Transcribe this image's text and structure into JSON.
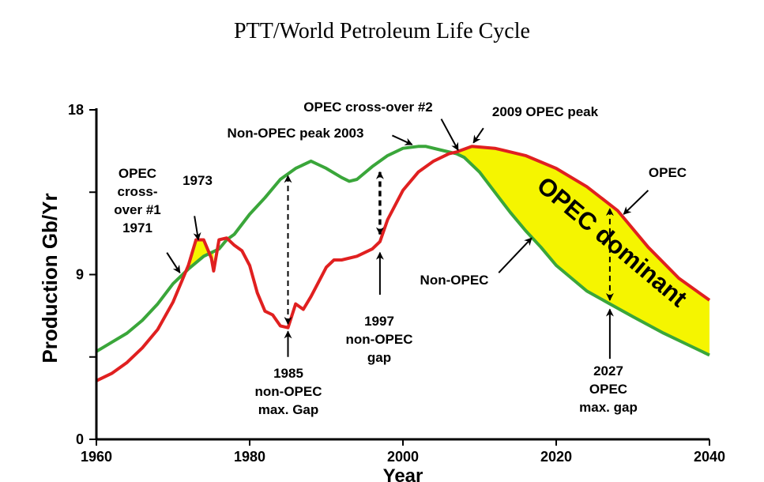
{
  "chart_data": {
    "type": "line",
    "title": "PTT/World Petroleum Life Cycle",
    "xlabel": "Year",
    "ylabel": "Production Gb/Yr",
    "xlim": [
      1960,
      2040
    ],
    "ylim": [
      0,
      18
    ],
    "x_ticks": [
      "1960",
      "1980",
      "2000",
      "2020",
      "2040"
    ],
    "y_ticks": [
      "0",
      "9",
      "18"
    ],
    "y_minor_ticks": [
      4.5,
      13.5
    ],
    "series": [
      {
        "name": "OPEC",
        "color": "#e02020",
        "points": [
          [
            1960,
            3.2
          ],
          [
            1962,
            3.6
          ],
          [
            1964,
            4.2
          ],
          [
            1966,
            5.0
          ],
          [
            1968,
            6.0
          ],
          [
            1970,
            7.5
          ],
          [
            1971,
            8.5
          ],
          [
            1972,
            9.5
          ],
          [
            1973,
            10.9
          ],
          [
            1974,
            10.9
          ],
          [
            1975,
            9.9
          ],
          [
            1975.3,
            9.2
          ],
          [
            1976,
            10.9
          ],
          [
            1977,
            11.0
          ],
          [
            1978,
            10.6
          ],
          [
            1979,
            10.3
          ],
          [
            1980,
            9.5
          ],
          [
            1981,
            8.0
          ],
          [
            1982,
            7.0
          ],
          [
            1983,
            6.8
          ],
          [
            1984,
            6.2
          ],
          [
            1985,
            6.1
          ],
          [
            1986,
            7.4
          ],
          [
            1987,
            7.1
          ],
          [
            1988,
            7.8
          ],
          [
            1989,
            8.6
          ],
          [
            1990,
            9.4
          ],
          [
            1991,
            9.8
          ],
          [
            1992,
            9.8
          ],
          [
            1994,
            10.0
          ],
          [
            1996,
            10.4
          ],
          [
            1997,
            10.8
          ],
          [
            1998,
            12.0
          ],
          [
            2000,
            13.6
          ],
          [
            2002,
            14.6
          ],
          [
            2004,
            15.2
          ],
          [
            2006,
            15.6
          ],
          [
            2007,
            15.7
          ],
          [
            2009,
            16.0
          ],
          [
            2012,
            15.9
          ],
          [
            2016,
            15.5
          ],
          [
            2020,
            14.8
          ],
          [
            2024,
            13.8
          ],
          [
            2028,
            12.5
          ],
          [
            2032,
            10.5
          ],
          [
            2036,
            8.8
          ],
          [
            2040,
            7.6
          ]
        ]
      },
      {
        "name": "Non-OPEC",
        "color": "#3aa63a",
        "points": [
          [
            1960,
            4.8
          ],
          [
            1962,
            5.3
          ],
          [
            1964,
            5.8
          ],
          [
            1966,
            6.5
          ],
          [
            1968,
            7.4
          ],
          [
            1970,
            8.5
          ],
          [
            1972,
            9.3
          ],
          [
            1974,
            10.0
          ],
          [
            1976,
            10.4
          ],
          [
            1977,
            10.9
          ],
          [
            1978,
            11.2
          ],
          [
            1980,
            12.3
          ],
          [
            1982,
            13.2
          ],
          [
            1984,
            14.2
          ],
          [
            1986,
            14.8
          ],
          [
            1988,
            15.2
          ],
          [
            1989,
            15.0
          ],
          [
            1990,
            14.8
          ],
          [
            1992,
            14.3
          ],
          [
            1993,
            14.1
          ],
          [
            1994,
            14.2
          ],
          [
            1996,
            14.9
          ],
          [
            1998,
            15.5
          ],
          [
            2000,
            15.9
          ],
          [
            2002,
            16.0
          ],
          [
            2003,
            16.0
          ],
          [
            2005,
            15.8
          ],
          [
            2007,
            15.6
          ],
          [
            2008,
            15.4
          ],
          [
            2010,
            14.6
          ],
          [
            2012,
            13.5
          ],
          [
            2014,
            12.4
          ],
          [
            2016,
            11.4
          ],
          [
            2018,
            10.5
          ],
          [
            2020,
            9.5
          ],
          [
            2022,
            8.8
          ],
          [
            2024,
            8.1
          ],
          [
            2027,
            7.4
          ],
          [
            2030,
            6.7
          ],
          [
            2034,
            5.8
          ],
          [
            2037,
            5.2
          ],
          [
            2040,
            4.6
          ]
        ]
      }
    ],
    "shaded_regions": [
      {
        "name": "1973 OPEC surplus",
        "color": "#f5f500",
        "from": 1971,
        "to": 1975.3
      },
      {
        "name": "OPEC dominant",
        "color": "#f5f500",
        "from": 2007,
        "to": 2040
      }
    ],
    "annotations": [
      {
        "text_lines": [
          "OPEC",
          "cross-",
          "over #1",
          "1971"
        ],
        "arrow": {
          "from": [
            1969.2,
            10.2
          ],
          "to": [
            1970.9,
            9.1
          ],
          "style": "solid"
        }
      },
      {
        "text_lines": [
          "1973"
        ],
        "arrow": {
          "from": [
            1972.8,
            12.2
          ],
          "to": [
            1973.3,
            10.9
          ],
          "style": "solid"
        }
      },
      {
        "text_lines": [
          "Non-OPEC peak 2003"
        ],
        "arrow": {
          "from": [
            1998.6,
            16.6
          ],
          "to": [
            2001.2,
            16.1
          ],
          "style": "solid"
        }
      },
      {
        "text_lines": [
          "OPEC cross-over #2"
        ],
        "arrow": {
          "from": [
            2005,
            17.5
          ],
          "to": [
            2007.2,
            15.8
          ],
          "style": "solid"
        }
      },
      {
        "text_lines": [
          "2009 OPEC peak"
        ],
        "arrow": {
          "from": [
            2010.5,
            17.0
          ],
          "to": [
            2009.2,
            16.2
          ],
          "style": "solid"
        }
      },
      {
        "text_lines": [
          "OPEC"
        ],
        "arrow": {
          "from": [
            2032,
            13.6
          ],
          "to": [
            2028.8,
            12.3
          ],
          "style": "solid"
        }
      },
      {
        "text_lines": [
          "Non-OPEC"
        ],
        "arrow": {
          "from": [
            2012.5,
            9.1
          ],
          "to": [
            2016.8,
            11.0
          ],
          "style": "solid"
        }
      },
      {
        "text_lines": [
          "OPEC dominant"
        ],
        "rotation_deg": 40
      },
      {
        "text_lines": [
          "1985",
          "non-OPEC",
          "max. Gap"
        ],
        "arrow": {
          "from": [
            1985,
            4.5
          ],
          "to": [
            1985,
            5.9
          ],
          "style": "solid"
        }
      },
      {
        "text_lines": [
          "1997",
          "non-OPEC",
          "gap"
        ],
        "arrow": {
          "from": [
            1997,
            7.9
          ],
          "to": [
            1997,
            10.2
          ],
          "style": "solid"
        }
      },
      {
        "text_lines": [
          "2027",
          "OPEC",
          "max. gap"
        ],
        "arrow": {
          "from": [
            2027,
            4.4
          ],
          "to": [
            2027,
            7.1
          ],
          "style": "solid"
        }
      },
      {
        "text_lines": [],
        "name": "1985 gap",
        "arrow": {
          "from": [
            1985,
            6.3
          ],
          "to": [
            1985,
            14.4
          ],
          "style": "dashed",
          "double": true
        }
      },
      {
        "text_lines": [],
        "name": "1997 gap",
        "arrow": {
          "from": [
            1997,
            11.2
          ],
          "to": [
            1997,
            14.6
          ],
          "style": "dashed",
          "double": true
        }
      },
      {
        "text_lines": [],
        "name": "2027 gap",
        "arrow": {
          "from": [
            2027,
            7.6
          ],
          "to": [
            2027,
            12.6
          ],
          "style": "dashed",
          "double": true
        }
      }
    ]
  }
}
